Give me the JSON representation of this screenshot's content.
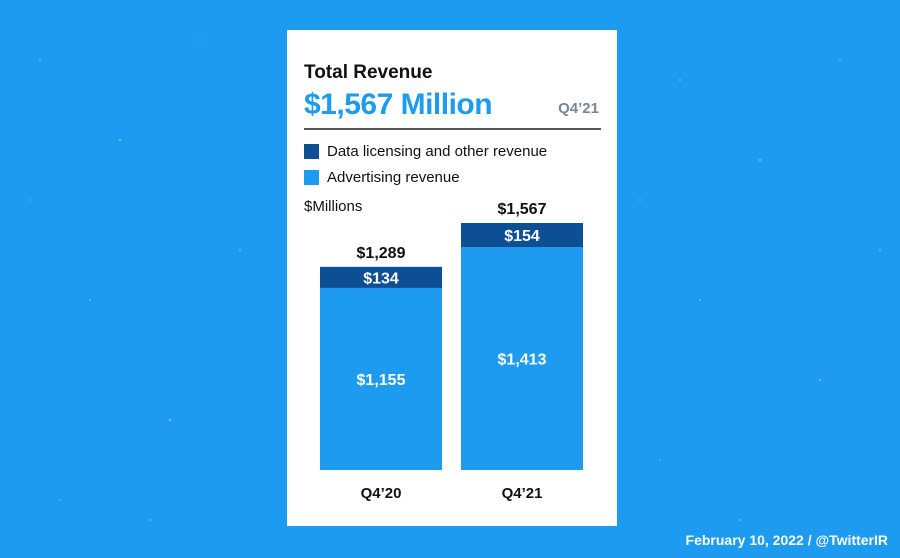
{
  "title": "Total Revenue",
  "headline": "$1,567 Million",
  "period": "Q4’21",
  "unit_label": "$Millions",
  "footer": "February 10, 2022 / @TwitterIR",
  "colors": {
    "background": "#1d9bf0",
    "data_licensing": "#0c4f95",
    "advertising": "#1d9bf0"
  },
  "chart_data": {
    "type": "bar",
    "stacked": true,
    "categories": [
      "Q4’20",
      "Q4’21"
    ],
    "series": [
      {
        "name": "Advertising revenue",
        "values": [
          1155,
          1413
        ],
        "labels": [
          "$1,155",
          "$1,413"
        ]
      },
      {
        "name": "Data licensing and other revenue",
        "values": [
          134,
          154
        ],
        "labels": [
          "$134",
          "$154"
        ]
      }
    ],
    "totals": [
      1289,
      1567
    ],
    "total_labels": [
      "$1,289",
      "$1,567"
    ],
    "legend": [
      "Data licensing and other revenue",
      "Advertising revenue"
    ],
    "legend_position": "top-left",
    "grid": false,
    "ylim": [
      0,
      1567
    ]
  }
}
